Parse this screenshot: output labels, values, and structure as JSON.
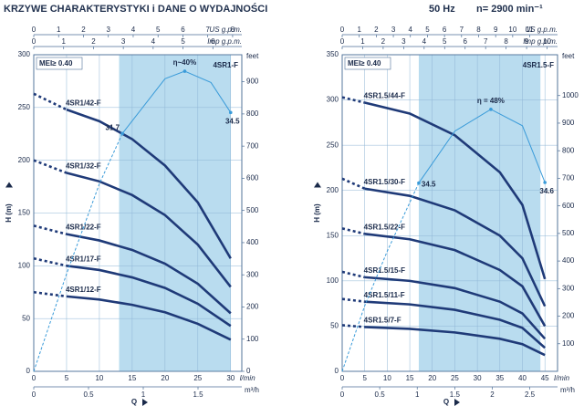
{
  "header": {
    "title": "KRZYWE CHARAKTERYSTYKI i DANE O WYDAJNOŚCI",
    "frequency": "50 Hz",
    "speed": "n= 2900 min⁻¹"
  },
  "chart_data": [
    {
      "type": "line",
      "title": "4SR1-F",
      "badge": "MEI≥ 0.40",
      "y_label": "H (m)",
      "x_label": "l/min",
      "q_label": "Q",
      "xlim": [
        0,
        31.7
      ],
      "xticks": [
        0,
        5,
        10,
        15,
        20,
        25,
        30
      ],
      "ylim": [
        0,
        300
      ],
      "yticks": [
        0,
        50,
        100,
        150,
        200,
        250,
        300
      ],
      "y2lim": [
        0,
        42.2
      ],
      "grid": true,
      "band": [
        13,
        30
      ],
      "band_color": "#b9dcef",
      "top_axes": [
        {
          "label": "US g.p.m.",
          "lim": [
            0,
            8.37
          ],
          "ticks": [
            0,
            1,
            2,
            3,
            4,
            5,
            6,
            7,
            8
          ]
        },
        {
          "label": "Imp g.p.m.",
          "lim": [
            0,
            6.97
          ],
          "ticks": [
            0,
            1,
            2,
            3,
            4,
            5,
            6
          ]
        }
      ],
      "bottom_axis": {
        "label": "m³/h",
        "lim": [
          0,
          1.9
        ],
        "ticks": [
          0,
          0.5,
          1,
          1.5
        ]
      },
      "right_axis": {
        "label": "feet",
        "lim": [
          0,
          984
        ],
        "ticks": [
          0,
          100,
          200,
          300,
          400,
          500,
          600,
          700,
          800,
          900
        ]
      },
      "series": [
        {
          "name": "4SR1/42-F",
          "color": "#1f3a78",
          "x": [
            0,
            5,
            10,
            15,
            20,
            25,
            30
          ],
          "values": [
            263,
            248,
            237,
            220,
            195,
            160,
            107
          ]
        },
        {
          "name": "4SR1/32-F",
          "color": "#1f3a78",
          "x": [
            0,
            5,
            10,
            15,
            20,
            25,
            30
          ],
          "values": [
            200,
            188,
            180,
            167,
            148,
            120,
            80
          ]
        },
        {
          "name": "4SR1/22-F",
          "color": "#1f3a78",
          "x": [
            0,
            5,
            10,
            15,
            20,
            25,
            30
          ],
          "values": [
            138,
            130,
            124,
            115,
            102,
            83,
            55
          ]
        },
        {
          "name": "4SR1/17-F",
          "color": "#1f3a78",
          "x": [
            0,
            5,
            10,
            15,
            20,
            25,
            30
          ],
          "values": [
            107,
            100,
            96,
            89,
            79,
            64,
            43
          ]
        },
        {
          "name": "4SR1/12-F",
          "color": "#1f3a78",
          "x": [
            0,
            5,
            10,
            15,
            20,
            25,
            30
          ],
          "values": [
            75,
            71,
            68,
            63,
            56,
            45,
            30
          ]
        },
        {
          "axis": "y2",
          "color": "#3a9bd9",
          "x": [
            0,
            5,
            10,
            13.5,
            20,
            23,
            27,
            30
          ],
          "values": [
            0,
            13,
            25,
            31.7,
            39,
            40,
            38.5,
            34.5
          ],
          "value_labels": [
            null,
            null,
            null,
            "31.7",
            null,
            "η~40%",
            null,
            "34.5"
          ]
        }
      ]
    },
    {
      "type": "line",
      "title": "4SR1.5-F",
      "badge": "MEI≥ 0.40",
      "y_label": "H (m)",
      "x_label": "l/min",
      "q_label": "Q",
      "xlim": [
        0,
        47.8
      ],
      "xticks": [
        0,
        5,
        10,
        15,
        20,
        25,
        30,
        35,
        40,
        45
      ],
      "ylim": [
        0,
        350
      ],
      "yticks": [
        0,
        50,
        100,
        150,
        200,
        250,
        300,
        350
      ],
      "y2lim": [
        0,
        58
      ],
      "grid": true,
      "band": [
        17,
        44
      ],
      "band_color": "#b9dcef",
      "top_axes": [
        {
          "label": "US g.p.m.",
          "lim": [
            0,
            12.63
          ],
          "ticks": [
            0,
            1,
            2,
            3,
            4,
            5,
            6,
            7,
            8,
            9,
            10,
            11
          ]
        },
        {
          "label": "Imp g.p.m.",
          "lim": [
            0,
            10.51
          ],
          "ticks": [
            0,
            1,
            2,
            3,
            4,
            5,
            6,
            7,
            8,
            9,
            10
          ]
        }
      ],
      "bottom_axis": {
        "label": "m³/h",
        "lim": [
          0,
          2.87
        ],
        "ticks": [
          0,
          0.5,
          1,
          1.5,
          2,
          2.5
        ]
      },
      "right_axis": {
        "label": "feet",
        "lim": [
          0,
          1148
        ],
        "ticks": [
          100,
          200,
          300,
          400,
          500,
          600,
          700,
          800,
          900,
          1000
        ]
      },
      "series": [
        {
          "name": "4SR1.5/44-F",
          "color": "#1f3a78",
          "x": [
            0,
            5,
            15,
            25,
            35,
            40,
            45
          ],
          "values": [
            303,
            297,
            285,
            261,
            220,
            184,
            102
          ]
        },
        {
          "name": "4SR1.5/30-F",
          "color": "#1f3a78",
          "x": [
            0,
            5,
            15,
            25,
            35,
            40,
            45
          ],
          "values": [
            213,
            202,
            194,
            178,
            150,
            125,
            72
          ]
        },
        {
          "name": "4SR1.5/22-F",
          "color": "#1f3a78",
          "x": [
            0,
            5,
            15,
            25,
            35,
            40,
            45
          ],
          "values": [
            158,
            152,
            146,
            134,
            112,
            94,
            50
          ]
        },
        {
          "name": "4SR1.5/15-F",
          "color": "#1f3a78",
          "x": [
            0,
            5,
            15,
            25,
            35,
            40,
            45
          ],
          "values": [
            110,
            104,
            100,
            92,
            77,
            64,
            36
          ]
        },
        {
          "name": "4SR1.5/11-F",
          "color": "#1f3a78",
          "x": [
            0,
            5,
            15,
            25,
            35,
            40,
            45
          ],
          "values": [
            80,
            77,
            74,
            68,
            57,
            48,
            26
          ]
        },
        {
          "name": "4SR1.5/7-F",
          "color": "#1f3a78",
          "x": [
            0,
            5,
            15,
            25,
            35,
            40,
            45
          ],
          "values": [
            51,
            49,
            47,
            43,
            36,
            30,
            18
          ]
        },
        {
          "axis": "y2",
          "color": "#3a9bd9",
          "x": [
            0,
            5,
            10,
            17,
            25,
            33,
            40,
            45
          ],
          "values": [
            0,
            12,
            22,
            34.5,
            44,
            48,
            45,
            34.6
          ],
          "value_labels": [
            null,
            null,
            null,
            "34.5",
            null,
            "η = 48%",
            null,
            "34.6"
          ]
        }
      ]
    }
  ]
}
